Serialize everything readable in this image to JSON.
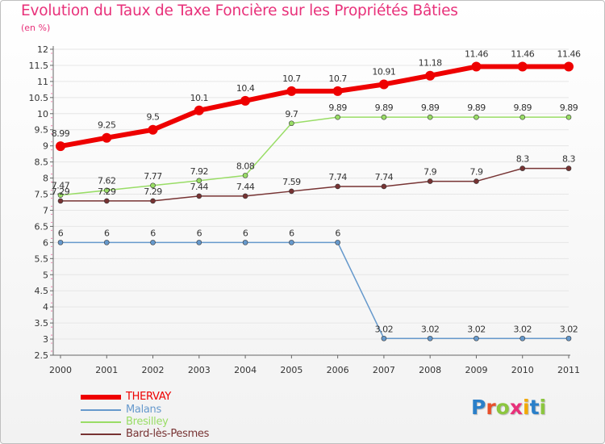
{
  "header": {
    "title": "Evolution du Taux de Taxe Foncière sur les Propriétés Bâties",
    "subtitle": "(en %)"
  },
  "logo": {
    "letters": [
      "P",
      "r",
      "o",
      "x",
      "i",
      "t",
      "i"
    ],
    "colors": [
      "#2a7fc9",
      "#e8502a",
      "#8cc63f",
      "#e8317a",
      "#f2a900",
      "#2a7fc9",
      "#8cc63f"
    ]
  },
  "colors": {
    "title": "#e8317a",
    "axis": "#666666",
    "grid": "#e6e6e6"
  },
  "chart_data": {
    "type": "line",
    "title": "Evolution du Taux de Taxe Foncière sur les Propriétés Bâties",
    "ylabel": "(en %)",
    "xlabel": "",
    "x": [
      "2000",
      "2001",
      "2002",
      "2003",
      "2004",
      "2005",
      "2006",
      "2007",
      "2008",
      "2009",
      "2010",
      "2011"
    ],
    "ylim": [
      2.5,
      12
    ],
    "yticks": [
      "2.5",
      "3",
      "3.5",
      "4",
      "4.5",
      "5",
      "5.5",
      "6",
      "6.5",
      "7",
      "7.5",
      "8",
      "8.5",
      "9",
      "9.5",
      "10",
      "10.5",
      "11",
      "11.5",
      "12"
    ],
    "grid": true,
    "legend": "bottom-left",
    "series": [
      {
        "name": "THERVAY",
        "color": "#ee0000",
        "values": [
          8.99,
          9.25,
          9.5,
          10.1,
          10.4,
          10.7,
          10.7,
          10.91,
          11.18,
          11.46,
          11.46,
          11.46
        ],
        "labels": [
          "8.99",
          "9.25",
          "9.5",
          "10.1",
          "10.4",
          "10.7",
          "10.7",
          "10.91",
          "11.18",
          "11.46",
          "11.46",
          "11.46"
        ]
      },
      {
        "name": "Malans",
        "color": "#6699cc",
        "values": [
          6,
          6,
          6,
          6,
          6,
          6,
          6,
          3.02,
          3.02,
          3.02,
          3.02,
          3.02
        ],
        "labels": [
          "6",
          "6",
          "6",
          "6",
          "6",
          "6",
          "6",
          "3.02",
          "3.02",
          "3.02",
          "3.02",
          "3.02"
        ]
      },
      {
        "name": "Bresilley",
        "color": "#99dd66",
        "values": [
          7.47,
          7.62,
          7.77,
          7.92,
          8.08,
          9.7,
          9.89,
          9.89,
          9.89,
          9.89,
          9.89,
          9.89
        ],
        "labels": [
          "7.47",
          "7.62",
          "7.77",
          "7.92",
          "8.08",
          "9.7",
          "9.89",
          "9.89",
          "9.89",
          "9.89",
          "9.89",
          "9.89"
        ]
      },
      {
        "name": "Bard-lès-Pesmes",
        "color": "#773333",
        "values": [
          7.29,
          7.29,
          7.29,
          7.44,
          7.44,
          7.59,
          7.74,
          7.74,
          7.9,
          7.9,
          8.3,
          8.3
        ],
        "labels": [
          "7.29",
          "7.29",
          "7.29",
          "7.44",
          "7.44",
          "7.59",
          "7.74",
          "7.74",
          "7.9",
          "7.9",
          "8.3",
          "8.3"
        ]
      }
    ]
  }
}
